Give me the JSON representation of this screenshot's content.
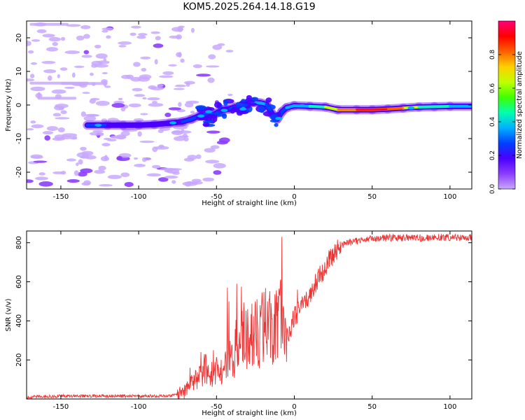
{
  "figure_title": "KOM5.2025.264.14.18.G19",
  "colormap": [
    "#c8a8ff",
    "#8b3dff",
    "#4a00ff",
    "#0040ff",
    "#00b0ff",
    "#00ffb0",
    "#40ff00",
    "#c0ff00",
    "#ffd000",
    "#ff6000",
    "#ff0000",
    "#ff007a"
  ],
  "colorbar": {
    "label": "Normalized spectral amplitude",
    "min": 0,
    "max": 1,
    "ticks": [
      0.0,
      0.2,
      0.4,
      0.6,
      0.8
    ],
    "tick_labels": [
      "0.0",
      "0.2",
      "0.4",
      "0.6",
      "0.8"
    ]
  },
  "chart_data": [
    {
      "type": "heatmap",
      "title": "KOM5.2025.264.14.18.G19",
      "xlabel": "Height of straight line (km)",
      "ylabel": "Frequency (Hz)",
      "xlim": [
        -172,
        114
      ],
      "ylim": [
        -25,
        25
      ],
      "xticks": [
        -150,
        -100,
        -50,
        0,
        50,
        100
      ],
      "xtick_labels": [
        "-150",
        "-100",
        "-50",
        "0",
        "50",
        "100"
      ],
      "yticks": [
        -20,
        -10,
        0,
        10,
        20
      ],
      "ytick_labels": [
        "-20",
        "-10",
        "0",
        "10",
        "20"
      ],
      "ridge": {
        "x": [
          -133,
          -120,
          -110,
          -100,
          -90,
          -80,
          -72,
          -66,
          -60,
          -55,
          -50,
          -46,
          -42,
          -38,
          -34,
          -30,
          -26,
          -22,
          -18,
          -14,
          -11,
          -8,
          -5,
          0,
          10,
          20,
          28,
          40,
          50,
          60,
          70,
          80,
          90,
          100,
          114
        ],
        "freq": [
          -6.0,
          -6.0,
          -6.0,
          -6.0,
          -5.8,
          -5.4,
          -5.0,
          -4.2,
          -3.0,
          -3.8,
          -2.4,
          -1.4,
          -1.2,
          -0.6,
          -1.4,
          0.4,
          0.8,
          0.6,
          0.2,
          -2.8,
          -4.2,
          -2.0,
          -0.8,
          -0.2,
          -0.4,
          -0.6,
          -1.4,
          -1.4,
          -1.4,
          -1.2,
          -0.9,
          -0.6,
          -0.5,
          -0.4,
          -0.4
        ],
        "amplitude": [
          0.3,
          0.25,
          0.2,
          0.2,
          0.22,
          0.2,
          0.25,
          0.3,
          0.32,
          0.3,
          0.28,
          0.26,
          0.3,
          0.32,
          0.3,
          0.4,
          0.45,
          0.4,
          0.32,
          0.25,
          0.25,
          0.28,
          0.3,
          0.4,
          0.45,
          0.5,
          0.75,
          0.85,
          0.88,
          0.9,
          0.75,
          0.55,
          0.5,
          0.45,
          0.4
        ]
      }
    },
    {
      "type": "line",
      "xlabel": "Height of straight line (km)",
      "ylabel": "SNR (v/v)",
      "xlim": [
        -172,
        114
      ],
      "ylim": [
        0,
        860
      ],
      "xticks": [
        -150,
        -100,
        -50,
        0,
        50,
        100
      ],
      "xtick_labels": [
        "-150",
        "-100",
        "-50",
        "0",
        "50",
        "100"
      ],
      "yticks": [
        200,
        400,
        600,
        800
      ],
      "ytick_labels": [
        "200",
        "400",
        "600",
        "800"
      ],
      "series": [
        {
          "name": "SNR",
          "color": "#ee3333",
          "x": [
            -172,
            -150,
            -120,
            -100,
            -80,
            -72,
            -68,
            -65,
            -60,
            -57,
            -55,
            -50,
            -46,
            -44,
            -40,
            -37,
            -35,
            -33,
            -30,
            -28,
            -25,
            -22,
            -20,
            -16,
            -12,
            -9,
            -8,
            -6,
            -4,
            0,
            5,
            10,
            15,
            20,
            25,
            30,
            35,
            40,
            50,
            60,
            80,
            100,
            114
          ],
          "y": [
            10,
            15,
            15,
            15,
            15,
            25,
            60,
            90,
            120,
            160,
            120,
            150,
            100,
            220,
            180,
            280,
            260,
            330,
            290,
            310,
            330,
            340,
            360,
            380,
            400,
            420,
            450,
            360,
            320,
            420,
            480,
            540,
            610,
            680,
            740,
            780,
            800,
            810,
            820,
            825,
            825,
            828,
            825
          ]
        }
      ],
      "spikes": [
        {
          "x": -67,
          "y": 160
        },
        {
          "x": -60,
          "y": 240
        },
        {
          "x": -58,
          "y": 210
        },
        {
          "x": -52,
          "y": 250
        },
        {
          "x": -47,
          "y": 200
        },
        {
          "x": -43,
          "y": 570
        },
        {
          "x": -42,
          "y": 500
        },
        {
          "x": -37,
          "y": 590
        },
        {
          "x": -34,
          "y": 575
        },
        {
          "x": -30,
          "y": 460
        },
        {
          "x": -25,
          "y": 500
        },
        {
          "x": -22,
          "y": 480
        },
        {
          "x": -16,
          "y": 510
        },
        {
          "x": -8,
          "y": 830
        },
        {
          "x": -5,
          "y": 190
        },
        {
          "x": 2,
          "y": 560
        }
      ]
    }
  ]
}
